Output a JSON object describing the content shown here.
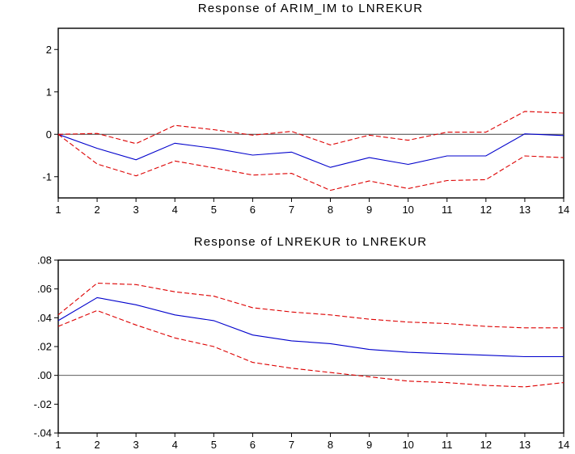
{
  "chart_data": [
    {
      "type": "line",
      "title": "Response of ARIM_IM to LNREKUR",
      "x": [
        1,
        2,
        3,
        4,
        5,
        6,
        7,
        8,
        9,
        10,
        11,
        12,
        13,
        14
      ],
      "ylim": [
        -1.5,
        2.5
      ],
      "yticks": [
        2,
        1,
        0,
        -1
      ],
      "ytick_labels": [
        "2",
        "1",
        "0",
        "-1"
      ],
      "zero_line": true,
      "grid": false,
      "series": [
        {
          "role": "response",
          "color": "#0000cc",
          "style": "solid",
          "values": [
            0.0,
            -0.33,
            -0.6,
            -0.21,
            -0.33,
            -0.49,
            -0.42,
            -0.78,
            -0.55,
            -0.71,
            -0.51,
            -0.51,
            0.01,
            -0.03
          ]
        },
        {
          "role": "upper",
          "color": "#dd0000",
          "style": "dashed",
          "values": [
            0.0,
            0.02,
            -0.22,
            0.21,
            0.11,
            -0.02,
            0.07,
            -0.25,
            -0.02,
            -0.14,
            0.05,
            0.05,
            0.54,
            0.5
          ]
        },
        {
          "role": "lower",
          "color": "#dd0000",
          "style": "dashed",
          "values": [
            0.0,
            -0.7,
            -0.98,
            -0.63,
            -0.79,
            -0.96,
            -0.92,
            -1.32,
            -1.1,
            -1.28,
            -1.09,
            -1.07,
            -0.51,
            -0.55
          ]
        }
      ]
    },
    {
      "type": "line",
      "title": "Response of LNREKUR to LNREKUR",
      "x": [
        1,
        2,
        3,
        4,
        5,
        6,
        7,
        8,
        9,
        10,
        11,
        12,
        13,
        14
      ],
      "ylim": [
        -0.04,
        0.08
      ],
      "yticks": [
        0.08,
        0.06,
        0.04,
        0.02,
        0.0,
        -0.02,
        -0.04
      ],
      "ytick_labels": [
        ".08",
        ".06",
        ".04",
        ".02",
        ".00",
        "-.02",
        "-.04"
      ],
      "zero_line": true,
      "grid": false,
      "series": [
        {
          "role": "response",
          "color": "#0000cc",
          "style": "solid",
          "values": [
            0.038,
            0.054,
            0.049,
            0.042,
            0.038,
            0.028,
            0.024,
            0.022,
            0.018,
            0.016,
            0.015,
            0.014,
            0.013,
            0.013
          ]
        },
        {
          "role": "upper",
          "color": "#dd0000",
          "style": "dashed",
          "values": [
            0.042,
            0.064,
            0.063,
            0.058,
            0.055,
            0.047,
            0.044,
            0.042,
            0.039,
            0.037,
            0.036,
            0.034,
            0.033,
            0.033
          ]
        },
        {
          "role": "lower",
          "color": "#dd0000",
          "style": "dashed",
          "values": [
            0.034,
            0.045,
            0.035,
            0.026,
            0.02,
            0.009,
            0.005,
            0.002,
            -0.001,
            -0.004,
            -0.005,
            -0.007,
            -0.008,
            -0.005
          ]
        }
      ]
    }
  ]
}
